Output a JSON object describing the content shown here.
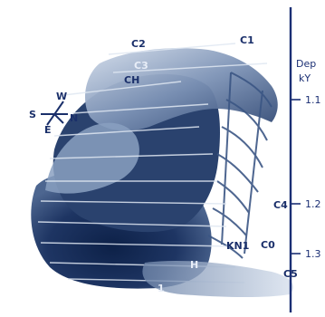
{
  "colors": {
    "ink": "#1a2f6a",
    "surface_dark": "#1e3563",
    "surface_mid": "#566f96",
    "surface_light": "#b9c7dc",
    "background": "#ffffff"
  },
  "compass": {
    "s": "S",
    "e": "E",
    "n": "N",
    "w": "W"
  },
  "axis": {
    "title_line1": "Dep",
    "title_line2": "kY",
    "tick_labels": [
      "1.1",
      "1.2",
      "1.3"
    ]
  },
  "horizon_labels": {
    "c2": "C2",
    "top_right": "C1",
    "c3": "C3",
    "ch": "CH",
    "right_mid": "C4",
    "kn": "KN1",
    "cd": "C0",
    "bottom_mid": "H",
    "bottom_left": "1",
    "bottom_right": "C5"
  }
}
